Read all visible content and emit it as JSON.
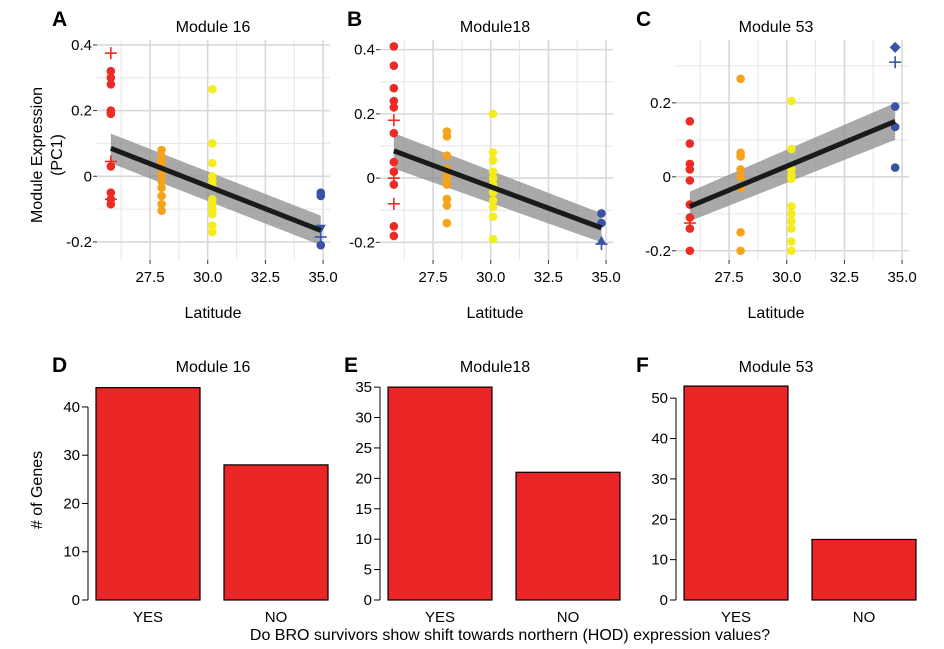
{
  "colors": {
    "red": "#ee2a24",
    "orange": "#f7a21b",
    "yellow": "#f5ec1c",
    "blue": "#3953a4",
    "fit": "#1a1a1a",
    "band": "#8c8c8c",
    "grid": "#e6e6e6",
    "bar": "#ec2527"
  },
  "chart_data": [
    {
      "type": "scatter",
      "panel": "A",
      "title": "Module 16",
      "xlabel": "Latitude",
      "ylabel": [
        "Module Expression",
        "(PC1)"
      ],
      "xlim": [
        25.2,
        35.3
      ],
      "ylim": [
        -0.255,
        0.415
      ],
      "xticks": [
        27.5,
        30.0,
        32.5,
        35.0
      ],
      "xtick_labels": [
        "27.5",
        "30.0",
        "32.5",
        "35.0"
      ],
      "yticks": [
        -0.2,
        0,
        0.2,
        0.4
      ],
      "ytick_labels": [
        "-0.2",
        "0",
        "0.2",
        "0.4"
      ],
      "grid": true,
      "fit": {
        "x0": 25.8,
        "y0": 0.085,
        "x1": 34.9,
        "y1": -0.165
      },
      "band": {
        "lo0": 0.04,
        "hi0": 0.13,
        "lo1": -0.21,
        "hi1": -0.12
      },
      "points": [
        {
          "x": 25.8,
          "y": 0.32,
          "g": "red"
        },
        {
          "x": 25.8,
          "y": 0.3,
          "g": "red"
        },
        {
          "x": 25.8,
          "y": 0.28,
          "g": "red"
        },
        {
          "x": 25.8,
          "y": 0.2,
          "g": "red"
        },
        {
          "x": 25.8,
          "y": 0.19,
          "g": "red"
        },
        {
          "x": 25.8,
          "y": 0.03,
          "g": "red"
        },
        {
          "x": 25.8,
          "y": -0.05,
          "g": "red"
        },
        {
          "x": 25.8,
          "y": -0.07,
          "g": "red"
        },
        {
          "x": 25.8,
          "y": -0.085,
          "g": "red"
        },
        {
          "x": 25.8,
          "y": 0.375,
          "g": "red",
          "m": "plus"
        },
        {
          "x": 25.8,
          "y": 0.045,
          "g": "red",
          "m": "plus"
        },
        {
          "x": 25.8,
          "y": -0.07,
          "g": "red",
          "m": "plus"
        },
        {
          "x": 28.0,
          "y": 0.08,
          "g": "orange"
        },
        {
          "x": 28.0,
          "y": 0.06,
          "g": "orange"
        },
        {
          "x": 28.0,
          "y": 0.045,
          "g": "orange"
        },
        {
          "x": 28.0,
          "y": 0.025,
          "g": "orange"
        },
        {
          "x": 28.0,
          "y": 0.005,
          "g": "orange"
        },
        {
          "x": 28.0,
          "y": -0.015,
          "g": "orange"
        },
        {
          "x": 28.0,
          "y": -0.035,
          "g": "orange"
        },
        {
          "x": 28.0,
          "y": -0.06,
          "g": "orange"
        },
        {
          "x": 28.0,
          "y": -0.085,
          "g": "orange"
        },
        {
          "x": 28.0,
          "y": -0.105,
          "g": "orange"
        },
        {
          "x": 30.2,
          "y": 0.265,
          "g": "yellow"
        },
        {
          "x": 30.2,
          "y": 0.1,
          "g": "yellow"
        },
        {
          "x": 30.2,
          "y": 0.04,
          "g": "yellow"
        },
        {
          "x": 30.2,
          "y": 0.0,
          "g": "yellow"
        },
        {
          "x": 30.2,
          "y": -0.015,
          "g": "yellow"
        },
        {
          "x": 30.2,
          "y": -0.03,
          "g": "yellow"
        },
        {
          "x": 30.2,
          "y": -0.07,
          "g": "yellow"
        },
        {
          "x": 30.2,
          "y": -0.085,
          "g": "yellow"
        },
        {
          "x": 30.2,
          "y": -0.1,
          "g": "yellow"
        },
        {
          "x": 30.2,
          "y": -0.115,
          "g": "yellow"
        },
        {
          "x": 30.2,
          "y": -0.15,
          "g": "yellow"
        },
        {
          "x": 30.2,
          "y": -0.17,
          "g": "yellow"
        },
        {
          "x": 34.9,
          "y": -0.05,
          "g": "blue"
        },
        {
          "x": 34.9,
          "y": -0.06,
          "g": "blue"
        },
        {
          "x": 34.9,
          "y": -0.21,
          "g": "blue"
        },
        {
          "x": 34.9,
          "y": -0.16,
          "g": "blue",
          "m": "triangle-down"
        },
        {
          "x": 34.9,
          "y": -0.185,
          "g": "blue",
          "m": "plus"
        }
      ]
    },
    {
      "type": "scatter",
      "panel": "B",
      "title": "Module18",
      "xlabel": "Latitude",
      "ylabel": [],
      "xlim": [
        25.2,
        35.3
      ],
      "ylim": [
        -0.255,
        0.43
      ],
      "xticks": [
        27.5,
        30.0,
        32.5,
        35.0
      ],
      "xtick_labels": [
        "27.5",
        "30.0",
        "32.5",
        "35.0"
      ],
      "yticks": [
        -0.2,
        0,
        0.2,
        0.4
      ],
      "ytick_labels": [
        "-0.2",
        "0",
        "0.2",
        "0.4"
      ],
      "grid": true,
      "fit": {
        "x0": 25.8,
        "y0": 0.085,
        "x1": 34.8,
        "y1": -0.155
      },
      "band": {
        "lo0": 0.03,
        "hi0": 0.14,
        "lo1": -0.2,
        "hi1": -0.11
      },
      "points": [
        {
          "x": 25.8,
          "y": 0.41,
          "g": "red"
        },
        {
          "x": 25.8,
          "y": 0.35,
          "g": "red"
        },
        {
          "x": 25.8,
          "y": 0.28,
          "g": "red"
        },
        {
          "x": 25.8,
          "y": 0.24,
          "g": "red"
        },
        {
          "x": 25.8,
          "y": 0.22,
          "g": "red"
        },
        {
          "x": 25.8,
          "y": 0.14,
          "g": "red"
        },
        {
          "x": 25.8,
          "y": 0.05,
          "g": "red"
        },
        {
          "x": 25.8,
          "y": 0.02,
          "g": "red"
        },
        {
          "x": 25.8,
          "y": -0.02,
          "g": "red"
        },
        {
          "x": 25.8,
          "y": -0.15,
          "g": "red"
        },
        {
          "x": 25.8,
          "y": -0.18,
          "g": "red"
        },
        {
          "x": 25.8,
          "y": 0.18,
          "g": "red",
          "m": "plus"
        },
        {
          "x": 25.8,
          "y": 0.0,
          "g": "red",
          "m": "plus"
        },
        {
          "x": 25.8,
          "y": -0.08,
          "g": "red",
          "m": "plus"
        },
        {
          "x": 28.1,
          "y": 0.145,
          "g": "orange"
        },
        {
          "x": 28.1,
          "y": 0.13,
          "g": "orange"
        },
        {
          "x": 28.1,
          "y": 0.07,
          "g": "orange"
        },
        {
          "x": 28.1,
          "y": 0.03,
          "g": "orange"
        },
        {
          "x": 28.1,
          "y": 0.015,
          "g": "orange"
        },
        {
          "x": 28.1,
          "y": 0.0,
          "g": "orange"
        },
        {
          "x": 28.1,
          "y": -0.02,
          "g": "orange"
        },
        {
          "x": 28.1,
          "y": -0.065,
          "g": "orange"
        },
        {
          "x": 28.1,
          "y": -0.085,
          "g": "orange"
        },
        {
          "x": 28.1,
          "y": -0.14,
          "g": "orange"
        },
        {
          "x": 30.1,
          "y": 0.2,
          "g": "yellow"
        },
        {
          "x": 30.1,
          "y": 0.08,
          "g": "yellow"
        },
        {
          "x": 30.1,
          "y": 0.055,
          "g": "yellow"
        },
        {
          "x": 30.1,
          "y": 0.02,
          "g": "yellow"
        },
        {
          "x": 30.1,
          "y": 0.0,
          "g": "yellow"
        },
        {
          "x": 30.1,
          "y": -0.02,
          "g": "yellow"
        },
        {
          "x": 30.1,
          "y": -0.045,
          "g": "yellow"
        },
        {
          "x": 30.1,
          "y": -0.07,
          "g": "yellow"
        },
        {
          "x": 30.1,
          "y": -0.09,
          "g": "yellow"
        },
        {
          "x": 30.1,
          "y": -0.12,
          "g": "yellow"
        },
        {
          "x": 30.1,
          "y": -0.19,
          "g": "yellow"
        },
        {
          "x": 34.8,
          "y": -0.11,
          "g": "blue"
        },
        {
          "x": 34.8,
          "y": -0.14,
          "g": "blue"
        },
        {
          "x": 34.8,
          "y": -0.195,
          "g": "blue",
          "m": "triangle-up"
        },
        {
          "x": 34.8,
          "y": -0.205,
          "g": "blue",
          "m": "plus"
        }
      ]
    },
    {
      "type": "scatter",
      "panel": "C",
      "title": "Module 53",
      "xlabel": "Latitude",
      "ylabel": [],
      "xlim": [
        25.2,
        35.3
      ],
      "ylim": [
        -0.225,
        0.37
      ],
      "xticks": [
        27.5,
        30.0,
        32.5,
        35.0
      ],
      "xtick_labels": [
        "27.5",
        "30.0",
        "32.5",
        "35.0"
      ],
      "yticks": [
        -0.2,
        0,
        0.2
      ],
      "ytick_labels": [
        "-0.2",
        "0",
        "0.2"
      ],
      "grid": true,
      "fit": {
        "x0": 25.8,
        "y0": -0.08,
        "x1": 34.7,
        "y1": 0.15
      },
      "band": {
        "lo0": -0.12,
        "hi0": -0.04,
        "lo1": 0.1,
        "hi1": 0.2
      },
      "points": [
        {
          "x": 25.8,
          "y": 0.15,
          "g": "red"
        },
        {
          "x": 25.8,
          "y": 0.09,
          "g": "red"
        },
        {
          "x": 25.8,
          "y": 0.035,
          "g": "red"
        },
        {
          "x": 25.8,
          "y": 0.02,
          "g": "red"
        },
        {
          "x": 25.8,
          "y": -0.01,
          "g": "red"
        },
        {
          "x": 25.8,
          "y": -0.075,
          "g": "red"
        },
        {
          "x": 25.8,
          "y": -0.11,
          "g": "red"
        },
        {
          "x": 25.8,
          "y": -0.14,
          "g": "red"
        },
        {
          "x": 25.8,
          "y": -0.2,
          "g": "red"
        },
        {
          "x": 25.8,
          "y": -0.125,
          "g": "red",
          "m": "plus"
        },
        {
          "x": 28.0,
          "y": 0.265,
          "g": "orange"
        },
        {
          "x": 28.0,
          "y": 0.065,
          "g": "orange"
        },
        {
          "x": 28.0,
          "y": 0.055,
          "g": "orange"
        },
        {
          "x": 28.0,
          "y": 0.02,
          "g": "orange"
        },
        {
          "x": 28.0,
          "y": 0.0,
          "g": "orange"
        },
        {
          "x": 28.0,
          "y": -0.03,
          "g": "orange"
        },
        {
          "x": 28.0,
          "y": -0.15,
          "g": "orange"
        },
        {
          "x": 28.0,
          "y": -0.2,
          "g": "orange"
        },
        {
          "x": 30.2,
          "y": 0.205,
          "g": "yellow"
        },
        {
          "x": 30.2,
          "y": 0.075,
          "g": "yellow"
        },
        {
          "x": 30.2,
          "y": 0.02,
          "g": "yellow"
        },
        {
          "x": 30.2,
          "y": 0.005,
          "g": "yellow"
        },
        {
          "x": 30.2,
          "y": -0.005,
          "g": "yellow"
        },
        {
          "x": 30.2,
          "y": -0.08,
          "g": "yellow"
        },
        {
          "x": 30.2,
          "y": -0.1,
          "g": "yellow"
        },
        {
          "x": 30.2,
          "y": -0.12,
          "g": "yellow"
        },
        {
          "x": 30.2,
          "y": -0.14,
          "g": "yellow"
        },
        {
          "x": 30.2,
          "y": -0.175,
          "g": "yellow"
        },
        {
          "x": 30.2,
          "y": -0.2,
          "g": "yellow"
        },
        {
          "x": 34.7,
          "y": 0.19,
          "g": "blue"
        },
        {
          "x": 34.7,
          "y": 0.135,
          "g": "blue"
        },
        {
          "x": 34.7,
          "y": 0.025,
          "g": "blue"
        },
        {
          "x": 34.7,
          "y": 0.35,
          "g": "blue",
          "m": "diamond"
        },
        {
          "x": 34.7,
          "y": 0.31,
          "g": "blue",
          "m": "plus"
        }
      ]
    },
    {
      "type": "bar",
      "panel": "D",
      "title": "Module 16",
      "categories": [
        "YES",
        "NO"
      ],
      "values": [
        44,
        28
      ],
      "ylabel": "# of Genes",
      "ylim": [
        0,
        46
      ],
      "yticks": [
        0,
        10,
        20,
        30,
        40
      ],
      "ytick_labels": [
        "0",
        "10",
        "20",
        "30",
        "40"
      ]
    },
    {
      "type": "bar",
      "panel": "E",
      "title": "Module18",
      "categories": [
        "YES",
        "NO"
      ],
      "values": [
        35,
        21
      ],
      "ylabel": "",
      "ylim": [
        0,
        36.5
      ],
      "yticks": [
        0,
        5,
        10,
        15,
        20,
        25,
        30,
        35
      ],
      "ytick_labels": [
        "0",
        "5",
        "10",
        "15",
        "20",
        "25",
        "30",
        "35"
      ]
    },
    {
      "type": "bar",
      "panel": "F",
      "title": "Module 53",
      "categories": [
        "YES",
        "NO"
      ],
      "values": [
        53,
        15
      ],
      "ylabel": "",
      "ylim": [
        0,
        55
      ],
      "yticks": [
        0,
        10,
        20,
        30,
        40,
        50
      ],
      "ytick_labels": [
        "0",
        "10",
        "20",
        "30",
        "40",
        "50"
      ]
    }
  ],
  "footer_xlabel": "Do BRO survivors show shift towards northern (HOD) expression values?"
}
